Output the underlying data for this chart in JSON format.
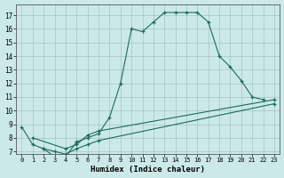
{
  "xlabel": "Humidex (Indice chaleur)",
  "background_color": "#cce9e9",
  "grid_color": "#b0c8c8",
  "line_color": "#1a6b5a",
  "xlim": [
    -0.5,
    23.5
  ],
  "ylim": [
    6.8,
    17.8
  ],
  "xticks": [
    0,
    1,
    2,
    3,
    4,
    5,
    6,
    7,
    8,
    9,
    10,
    11,
    12,
    13,
    14,
    15,
    16,
    17,
    18,
    19,
    20,
    21,
    22,
    23
  ],
  "yticks": [
    7,
    8,
    9,
    10,
    11,
    12,
    13,
    14,
    15,
    16,
    17
  ],
  "series": [
    {
      "x": [
        0,
        1,
        2,
        3,
        4,
        5,
        6,
        7,
        8,
        9,
        10,
        11,
        12,
        13,
        14,
        15,
        16,
        17,
        18,
        19,
        20,
        21,
        22
      ],
      "y": [
        8.8,
        7.5,
        7.2,
        6.6,
        6.6,
        7.7,
        8.0,
        8.3,
        9.5,
        12.0,
        16.0,
        15.8,
        16.5,
        17.2,
        17.2,
        17.2,
        17.2,
        16.5,
        14.0,
        13.2,
        12.2,
        11.0,
        10.8
      ]
    },
    {
      "x": [
        1,
        4,
        5,
        6,
        7,
        23
      ],
      "y": [
        8.0,
        7.2,
        7.5,
        8.2,
        8.5,
        10.8
      ]
    },
    {
      "x": [
        2,
        3,
        4,
        5,
        6,
        7,
        23
      ],
      "y": [
        7.2,
        7.0,
        6.8,
        7.2,
        7.5,
        7.8,
        10.5
      ]
    }
  ]
}
